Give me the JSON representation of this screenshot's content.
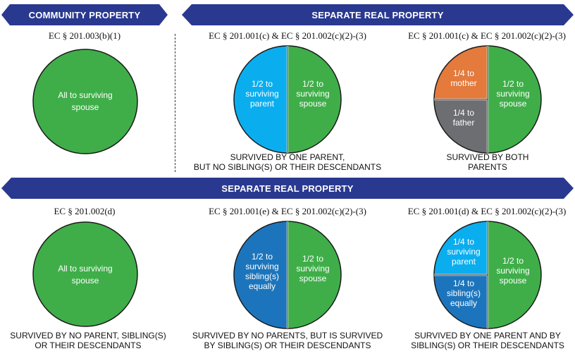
{
  "banners": {
    "community": "COMMUNITY PROPERTY",
    "separate_top": "SEPARATE REAL PROPERTY",
    "separate_bottom": "SEPARATE REAL PROPERTY"
  },
  "colors": {
    "banner": "#2a3990",
    "green": "#3fae49",
    "light_blue": "#0aaeef",
    "dark_blue": "#1c75bc",
    "orange": "#e47a3c",
    "gray": "#6d6e71"
  },
  "panels": {
    "p1": {
      "code": "EC § 201.003(b)(1)",
      "slices": [
        "All to surviving",
        "spouse"
      ]
    },
    "p2": {
      "code": "EC § 201.001(c) & EC § 201.002(c)(2)-(3)",
      "left": [
        "1/2 to",
        "surviving",
        "parent"
      ],
      "right": [
        "1/2 to",
        "surviving",
        "spouse"
      ],
      "caption": [
        "SURVIVED BY ONE PARENT,",
        "BUT NO SIBLING(S) OR THEIR DESCENDANTS"
      ]
    },
    "p3": {
      "code": "EC § 201.001(c) & EC § 201.002(c)(2)-(3)",
      "top_left": [
        "1/4 to",
        "mother"
      ],
      "bottom_left": [
        "1/4 to",
        "father"
      ],
      "right": [
        "1/2 to",
        "surviving",
        "spouse"
      ],
      "caption": [
        "SURVIVED BY BOTH",
        "PARENTS"
      ]
    },
    "p4": {
      "code": "EC § 201.002(d)",
      "slices": [
        "All to surviving",
        "spouse"
      ],
      "caption": [
        "SURVIVED BY NO PARENT, SIBLING(S)",
        "OR THEIR DESCENDANTS"
      ]
    },
    "p5": {
      "code": "EC § 201.001(e) & EC § 201.002(c)(2)-(3)",
      "left": [
        "1/2 to",
        "surviving",
        "sibling(s)",
        "equally"
      ],
      "right": [
        "1/2 to",
        "surviving",
        "spouse"
      ],
      "caption": [
        "SURVIVED BY NO PARENTS, BUT IS SURVIVED",
        "BY SIBLING(S) OR THEIR DESCENDANTS"
      ]
    },
    "p6": {
      "code": "EC § 201.001(d) & EC § 201.002(c)(2)-(3)",
      "top_left": [
        "1/4 to",
        "surviving",
        "parent"
      ],
      "bottom_left": [
        "1/4 to",
        "sibling(s)",
        "equally"
      ],
      "right": [
        "1/2 to",
        "surviving",
        "spouse"
      ],
      "caption": [
        "SURVIVED BY ONE PARENT AND BY",
        "SIBLING(S) OR THEIR DESCENDANTS"
      ]
    }
  }
}
